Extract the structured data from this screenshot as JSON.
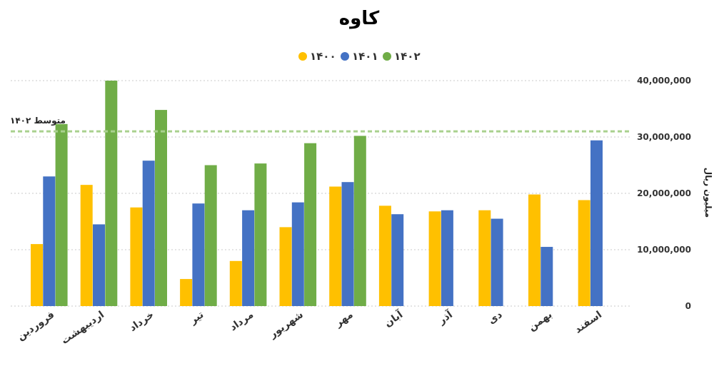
{
  "chart_data": {
    "type": "bar",
    "title": "کاوه",
    "ylabel": "میلیون ریال",
    "xlabel": "",
    "ylim": [
      0,
      40000000
    ],
    "yticks": [
      0,
      10000000,
      20000000,
      30000000,
      40000000
    ],
    "ytick_labels": [
      "0",
      "10,000,000",
      "20,000,000",
      "30,000,000",
      "40,000,000"
    ],
    "grid": true,
    "legend_position": "top-center",
    "categories": [
      "فروردین",
      "اردیبهشت",
      "خرداد",
      "تیر",
      "مرداد",
      "شهریور",
      "مهر",
      "آبان",
      "آذر",
      "دی",
      "بهمن",
      "اسفند"
    ],
    "series": [
      {
        "name": "۱۴۰۰",
        "color": "#FFC000",
        "values": [
          11000000,
          21500000,
          17500000,
          4800000,
          8000000,
          14000000,
          21200000,
          17800000,
          16800000,
          17000000,
          19800000,
          18800000
        ]
      },
      {
        "name": "۱۴۰۱",
        "color": "#4472C4",
        "values": [
          23000000,
          14500000,
          25800000,
          18200000,
          17000000,
          18400000,
          22000000,
          16300000,
          17000000,
          15500000,
          10500000,
          29400000
        ]
      },
      {
        "name": "۱۴۰۲",
        "color": "#70AD47",
        "values": [
          32300000,
          40000000,
          34800000,
          25000000,
          25300000,
          28900000,
          30200000,
          null,
          null,
          null,
          null,
          null
        ]
      }
    ],
    "average_line": {
      "label": "متوسط ۱۴۰۲",
      "value": 31000000,
      "color": "#A9D18E"
    }
  }
}
